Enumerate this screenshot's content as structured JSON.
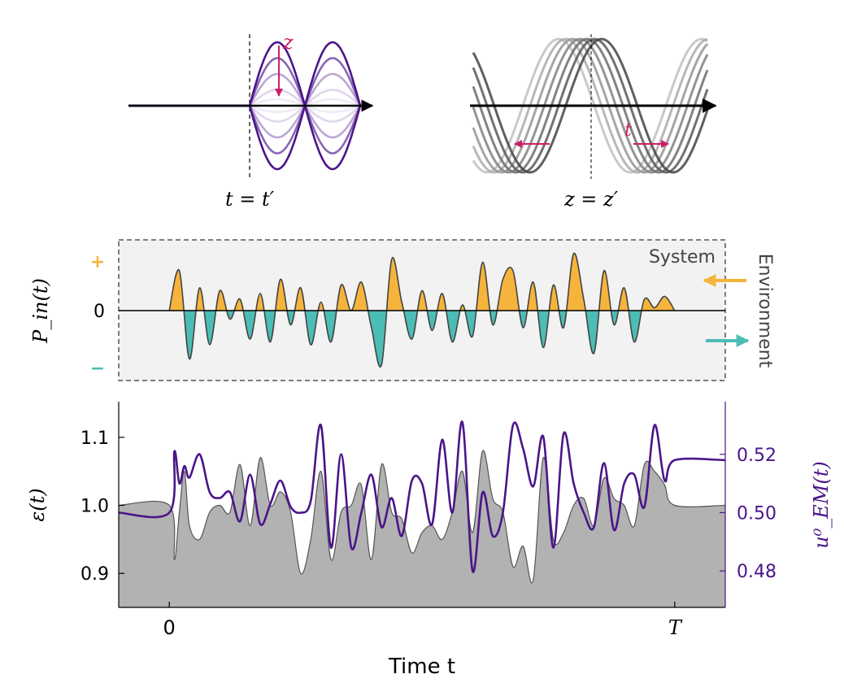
{
  "colors": {
    "purple": "#4b1589",
    "purple_light": "#9d94c9",
    "magenta": "#cc1f66",
    "orange": "#f6b43c",
    "teal": "#4cbdb5",
    "gray_fill": "#b2b2b2",
    "panel_bg": "#f2f2f2",
    "line_dark": "#444444"
  },
  "chart_data": [
    {
      "type": "line",
      "panel": "spatial-wave",
      "title": "",
      "annotations": {
        "arrow_label": "z",
        "caption": "t = t′"
      },
      "series": [
        {
          "name": "z = 0 (strongest)",
          "amplitude": 1.0
        },
        {
          "name": "z step 1",
          "amplitude": 0.75
        },
        {
          "name": "z step 2",
          "amplitude": 0.5
        },
        {
          "name": "z step 3",
          "amplitude": 0.25
        },
        {
          "name": "faded",
          "amplitude": 0.1
        }
      ]
    },
    {
      "type": "line",
      "panel": "temporal-wave",
      "title": "",
      "annotations": {
        "arrow_label": "t",
        "caption": "z = z′"
      },
      "series": [
        {
          "name": "t step 0",
          "phase": 0.0
        },
        {
          "name": "t step 1",
          "phase": 0.1
        },
        {
          "name": "t step 2",
          "phase": 0.2
        },
        {
          "name": "t step 3",
          "phase": 0.3
        },
        {
          "name": "t step 4",
          "phase": 0.4
        },
        {
          "name": "t step 5",
          "phase": 0.5
        },
        {
          "name": "t step 6",
          "phase": 0.6
        }
      ]
    },
    {
      "type": "area",
      "panel": "power-input",
      "ylabel": "P_in(t)",
      "yticks": [
        {
          "label": "+",
          "value": 1
        },
        {
          "label": "0",
          "value": 0
        },
        {
          "label": "−",
          "value": -1
        }
      ],
      "ylim": [
        -1.25,
        1.25
      ],
      "xlim": [
        -0.1,
        1.1
      ],
      "region_labels": {
        "system": "System",
        "environment": "Environment"
      },
      "x": [
        0.0,
        0.02,
        0.04,
        0.06,
        0.08,
        0.1,
        0.12,
        0.14,
        0.16,
        0.18,
        0.2,
        0.22,
        0.24,
        0.26,
        0.28,
        0.3,
        0.32,
        0.34,
        0.36,
        0.38,
        0.4,
        0.42,
        0.44,
        0.46,
        0.48,
        0.5,
        0.52,
        0.54,
        0.56,
        0.58,
        0.6,
        0.62,
        0.64,
        0.66,
        0.68,
        0.7,
        0.72,
        0.74,
        0.76,
        0.78,
        0.8,
        0.82,
        0.84,
        0.86,
        0.88,
        0.9,
        0.92,
        0.94,
        0.96,
        0.98,
        1.0
      ],
      "values": [
        0.0,
        0.7,
        -0.85,
        0.4,
        -0.6,
        0.35,
        -0.15,
        0.2,
        -0.5,
        0.3,
        -0.55,
        0.55,
        -0.25,
        0.4,
        -0.6,
        0.15,
        -0.55,
        0.45,
        0.0,
        0.5,
        -0.3,
        -0.95,
        0.9,
        0.15,
        -0.5,
        0.35,
        -0.35,
        0.3,
        -0.55,
        0.1,
        -0.45,
        0.85,
        -0.25,
        0.55,
        0.7,
        -0.3,
        0.5,
        -0.65,
        0.45,
        -0.3,
        1.0,
        0.2,
        -0.75,
        0.7,
        -0.25,
        0.4,
        -0.55,
        0.2,
        0.05,
        0.25,
        0.0
      ]
    },
    {
      "type": "line",
      "panel": "dielectric",
      "xlabel": "Time t",
      "ylabel": "ε(t)",
      "ylabel_right": "u⁰_EM(t)",
      "xticks": [
        {
          "label": "0",
          "value": 0
        },
        {
          "label": "T",
          "value": 1
        }
      ],
      "xlim": [
        -0.1,
        1.1
      ],
      "ylim": [
        0.85,
        1.15
      ],
      "yticks": [
        0.9,
        1.0,
        1.1
      ],
      "ylim_right": [
        0.4675,
        0.5375
      ],
      "yticks_right": [
        0.48,
        0.5,
        0.52
      ],
      "series": [
        {
          "name": "ε(t)",
          "axis": "left",
          "x": [
            -0.1,
            0.0,
            0.01,
            0.02,
            0.03,
            0.04,
            0.06,
            0.08,
            0.1,
            0.12,
            0.14,
            0.16,
            0.18,
            0.2,
            0.22,
            0.24,
            0.26,
            0.28,
            0.3,
            0.32,
            0.34,
            0.36,
            0.38,
            0.4,
            0.42,
            0.44,
            0.46,
            0.48,
            0.5,
            0.52,
            0.54,
            0.56,
            0.58,
            0.6,
            0.62,
            0.64,
            0.66,
            0.68,
            0.7,
            0.72,
            0.74,
            0.76,
            0.78,
            0.8,
            0.82,
            0.84,
            0.86,
            0.88,
            0.9,
            0.92,
            0.94,
            0.96,
            0.98,
            1.0,
            1.1
          ],
          "values": [
            1.0,
            1.0,
            0.92,
            0.99,
            1.05,
            0.97,
            0.95,
            0.99,
            1.0,
            0.99,
            1.06,
            0.97,
            1.07,
            1.0,
            1.02,
            0.99,
            0.9,
            0.95,
            1.05,
            0.92,
            0.99,
            1.0,
            1.03,
            0.92,
            1.06,
            0.99,
            0.98,
            0.93,
            0.96,
            0.97,
            0.95,
            0.99,
            1.05,
            0.96,
            1.08,
            1.01,
            0.99,
            0.91,
            0.94,
            0.89,
            1.07,
            0.95,
            0.96,
            1.0,
            1.01,
            0.97,
            1.04,
            1.01,
            1.0,
            0.97,
            1.06,
            1.05,
            1.03,
            1.0,
            1.0
          ]
        },
        {
          "name": "u⁰_EM(t)",
          "axis": "right",
          "x": [
            -0.1,
            0.0,
            0.01,
            0.02,
            0.03,
            0.04,
            0.06,
            0.08,
            0.1,
            0.12,
            0.14,
            0.16,
            0.18,
            0.2,
            0.22,
            0.24,
            0.26,
            0.28,
            0.3,
            0.32,
            0.34,
            0.36,
            0.38,
            0.4,
            0.42,
            0.44,
            0.46,
            0.48,
            0.5,
            0.52,
            0.54,
            0.56,
            0.58,
            0.6,
            0.62,
            0.64,
            0.66,
            0.68,
            0.7,
            0.72,
            0.74,
            0.76,
            0.78,
            0.8,
            0.82,
            0.84,
            0.86,
            0.88,
            0.9,
            0.92,
            0.94,
            0.96,
            0.98,
            1.0,
            1.1
          ],
          "values": [
            0.5,
            0.5,
            0.521,
            0.51,
            0.516,
            0.512,
            0.52,
            0.507,
            0.505,
            0.507,
            0.497,
            0.513,
            0.496,
            0.503,
            0.511,
            0.502,
            0.5,
            0.504,
            0.53,
            0.488,
            0.52,
            0.488,
            0.5,
            0.513,
            0.495,
            0.505,
            0.492,
            0.511,
            0.51,
            0.496,
            0.525,
            0.5,
            0.531,
            0.48,
            0.507,
            0.492,
            0.5,
            0.53,
            0.522,
            0.509,
            0.526,
            0.488,
            0.527,
            0.51,
            0.5,
            0.495,
            0.517,
            0.494,
            0.51,
            0.513,
            0.502,
            0.53,
            0.511,
            0.518,
            0.518
          ]
        }
      ]
    }
  ]
}
